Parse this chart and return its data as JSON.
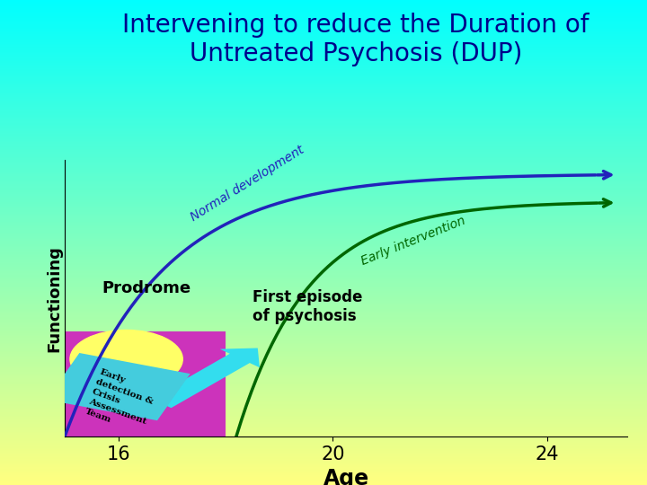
{
  "title_line1": "Intervening to reduce the Duration of",
  "title_line2": "Untreated Psychosis (DUP)",
  "title_color": "#00008B",
  "title_fontsize": 20,
  "xlabel": "Age",
  "ylabel": "Functioning",
  "xticks": [
    16,
    20,
    24
  ],
  "xlabel_fontsize": 17,
  "ylabel_fontsize": 13,
  "xtick_fontsize": 15,
  "normal_dev_color": "#2222BB",
  "early_int_color": "#006600",
  "prodrome_label": "Prodrome",
  "first_episode_label": "First episode\nof psychosis",
  "normal_dev_label": "Normal development",
  "early_int_label": "Early intervention",
  "team_label": "Early\ndetection &\nCrisis\nAssessment\nTeam",
  "box_color_magenta": "#CC33BB",
  "box_color_cyan": "#44CCDD",
  "circle_color": "#FFFF66"
}
